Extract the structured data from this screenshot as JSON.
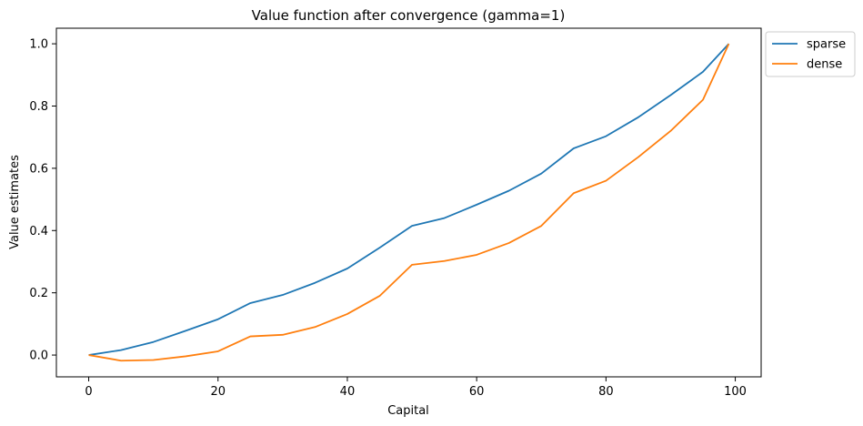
{
  "chart_data": {
    "type": "line",
    "title": "Value function after convergence (gamma=1)",
    "xlabel": "Capital",
    "ylabel": "Value estimates",
    "xlim": [
      -5,
      104
    ],
    "ylim": [
      -0.07,
      1.05
    ],
    "xticks": [
      0,
      20,
      40,
      60,
      80,
      100
    ],
    "xtick_labels": [
      "0",
      "20",
      "40",
      "60",
      "80",
      "100"
    ],
    "yticks": [
      0.0,
      0.2,
      0.4,
      0.6,
      0.8,
      1.0
    ],
    "ytick_labels": [
      "0.0",
      "0.2",
      "0.4",
      "0.6",
      "0.8",
      "1.0"
    ],
    "grid": false,
    "legend_position": "outside-top-right",
    "x": [
      0,
      5,
      10,
      15,
      20,
      25,
      30,
      35,
      40,
      45,
      50,
      55,
      60,
      65,
      70,
      75,
      80,
      85,
      90,
      95,
      99
    ],
    "series": [
      {
        "name": "sparse",
        "color": "#1f77b4",
        "values": [
          0.0,
          0.016,
          0.042,
          0.078,
          0.115,
          0.167,
          0.193,
          0.232,
          0.278,
          0.345,
          0.415,
          0.44,
          0.483,
          0.528,
          0.583,
          0.664,
          0.703,
          0.764,
          0.835,
          0.91,
          1.0
        ]
      },
      {
        "name": "dense",
        "color": "#ff7f0e",
        "values": [
          0.0,
          -0.018,
          -0.016,
          -0.004,
          0.012,
          0.06,
          0.065,
          0.09,
          0.132,
          0.19,
          0.29,
          0.302,
          0.322,
          0.36,
          0.415,
          0.52,
          0.56,
          0.636,
          0.72,
          0.82,
          1.0
        ]
      }
    ]
  }
}
